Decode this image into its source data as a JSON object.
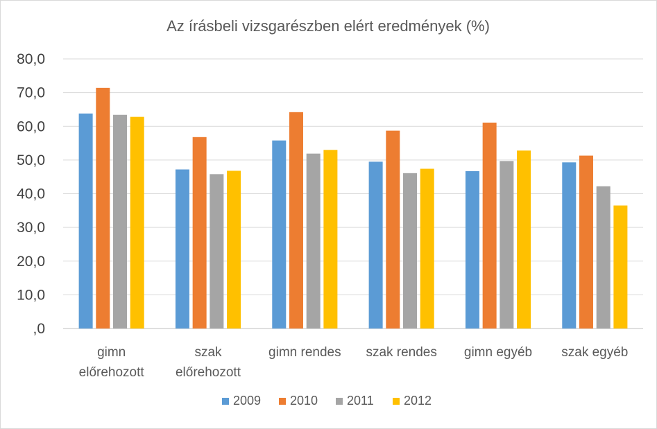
{
  "chart_data": {
    "type": "bar",
    "title": "Az írásbeli vizsgarészben elért eredmények  (%)",
    "xlabel": "",
    "ylabel": "",
    "ylim": [
      0,
      80
    ],
    "yticks": [
      ",0",
      "10,0",
      "20,0",
      "30,0",
      "40,0",
      "50,0",
      "60,0",
      "70,0",
      "80,0"
    ],
    "grid": true,
    "legend_position": "bottom",
    "categories": [
      [
        "gimn",
        "előrehozott"
      ],
      [
        "szak",
        "előrehozott"
      ],
      [
        "gimn rendes"
      ],
      [
        "szak rendes"
      ],
      [
        "gimn egyéb"
      ],
      [
        "szak egyéb"
      ]
    ],
    "series": [
      {
        "name": "2009",
        "color": "#5b9bd5",
        "values": [
          63.8,
          47.2,
          55.8,
          49.5,
          46.7,
          49.3
        ]
      },
      {
        "name": "2010",
        "color": "#ed7d31",
        "values": [
          71.4,
          56.8,
          64.2,
          58.7,
          61.1,
          51.3
        ]
      },
      {
        "name": "2011",
        "color": "#a5a5a5",
        "values": [
          63.4,
          45.8,
          51.9,
          46.1,
          49.7,
          42.2
        ]
      },
      {
        "name": "2012",
        "color": "#ffc000",
        "values": [
          62.8,
          46.8,
          53.0,
          47.4,
          52.8,
          36.5
        ]
      }
    ]
  }
}
